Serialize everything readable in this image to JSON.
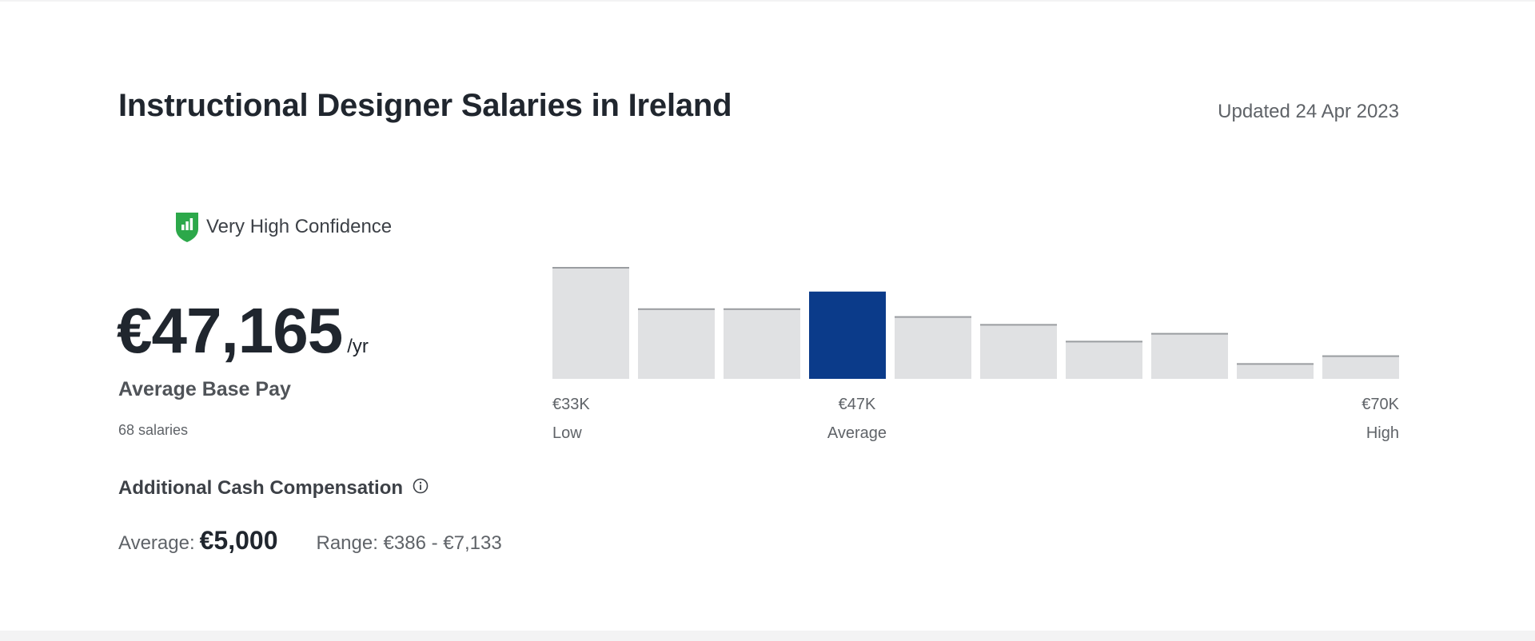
{
  "header": {
    "title": "Instructional Designer Salaries in Ireland",
    "updated": "Updated 24 Apr 2023"
  },
  "confidence": {
    "label": "Very High Confidence",
    "icon": "shield-bars-icon",
    "color": "#2ca84a"
  },
  "base_pay": {
    "value": "€47,165",
    "period": "/yr",
    "label": "Average Base Pay",
    "count": "68 salaries"
  },
  "additional_cash": {
    "label": "Additional Cash Compensation",
    "info_icon": "info-icon",
    "average_label": "Average:",
    "average_value": "€5,000",
    "range": "Range: €386 - €7,133"
  },
  "chart_data": {
    "type": "bar",
    "values": [
      1.0,
      0.63,
      0.63,
      0.78,
      0.56,
      0.49,
      0.34,
      0.41,
      0.14,
      0.21
    ],
    "highlight_index": 3,
    "colors": {
      "bar": "#e0e1e3",
      "bar_top": "#9a9da1",
      "highlight": "#0b3b8a"
    },
    "axis": {
      "low": {
        "value": "€33K",
        "label": "Low"
      },
      "average": {
        "value": "€47K",
        "label": "Average"
      },
      "high": {
        "value": "€70K",
        "label": "High"
      }
    }
  }
}
